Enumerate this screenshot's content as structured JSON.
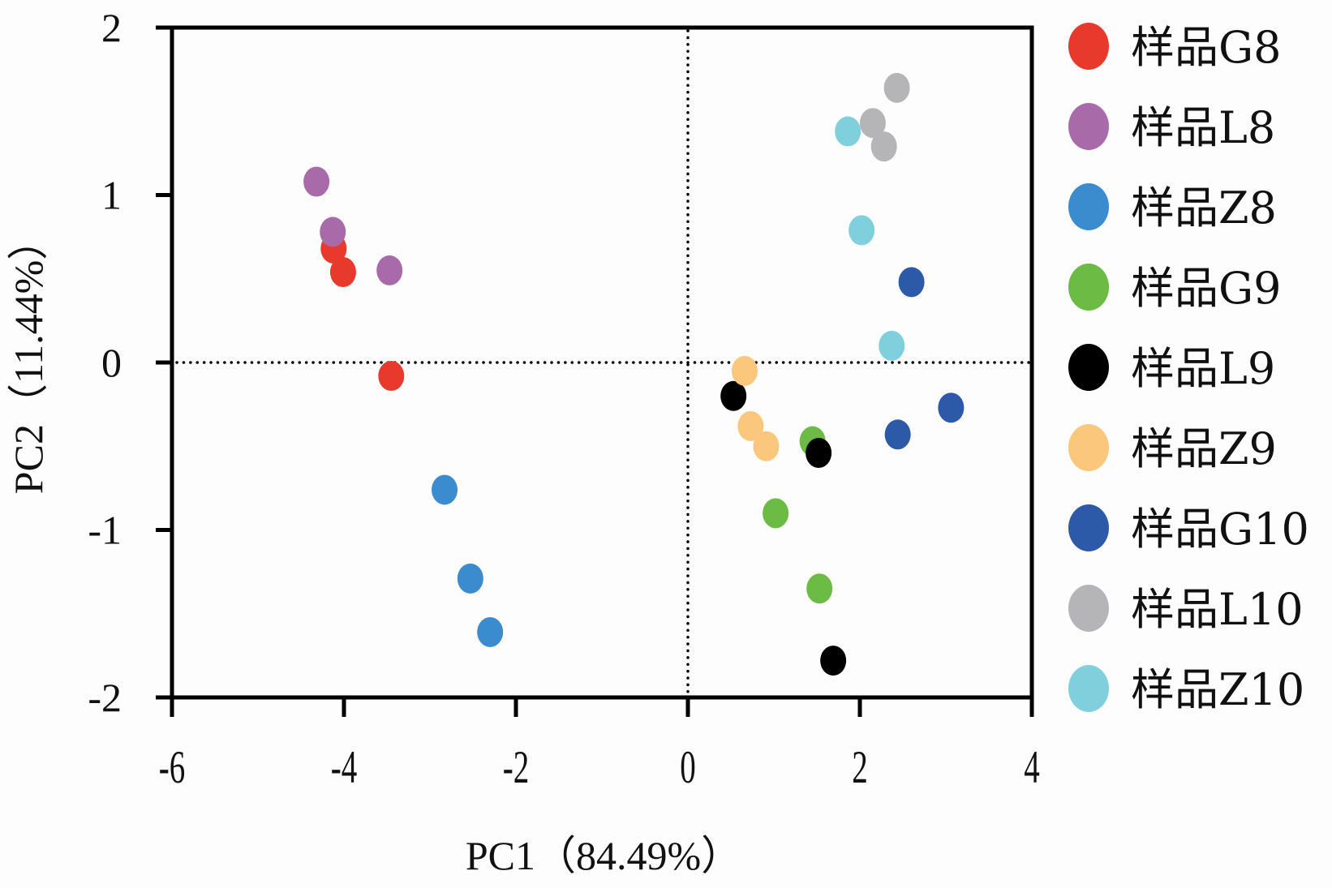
{
  "chart_data": {
    "type": "scatter",
    "title": "",
    "xlabel": "PC1（84.49%）",
    "ylabel": "PC2（11.44%）",
    "xlim": [
      -6,
      4
    ],
    "ylim": [
      -2,
      2
    ],
    "xticks": [
      -6,
      -4,
      -2,
      0,
      2,
      4
    ],
    "yticks": [
      -2,
      -1,
      0,
      1,
      2
    ],
    "xtick_labels": [
      "-6",
      "-4",
      "-2",
      "0",
      "2",
      "4"
    ],
    "ytick_labels": [
      "-2",
      "-1",
      "0",
      "1",
      "2"
    ],
    "grid": false,
    "reference_lines": {
      "x": 0,
      "y": 0,
      "style": "dotted"
    },
    "legend_position": "right",
    "series": [
      {
        "name": "样品G8",
        "color": "#e8392d",
        "points": [
          [
            -4.12,
            0.68
          ],
          [
            -4.01,
            0.54
          ],
          [
            -3.45,
            -0.08
          ]
        ]
      },
      {
        "name": "样品L8",
        "color": "#a96aaa",
        "points": [
          [
            -4.32,
            1.08
          ],
          [
            -4.13,
            0.78
          ],
          [
            -3.47,
            0.55
          ]
        ]
      },
      {
        "name": "样品Z8",
        "color": "#3b8bcf",
        "points": [
          [
            -2.83,
            -0.76
          ],
          [
            -2.53,
            -1.29
          ],
          [
            -2.3,
            -1.61
          ]
        ]
      },
      {
        "name": "样品G9",
        "color": "#6cbb45",
        "points": [
          [
            1.45,
            -0.47
          ],
          [
            1.02,
            -0.9
          ],
          [
            1.53,
            -1.35
          ]
        ]
      },
      {
        "name": "样品L9",
        "color": "#000000",
        "points": [
          [
            0.53,
            -0.2
          ],
          [
            1.52,
            -0.54
          ],
          [
            1.69,
            -1.78
          ]
        ]
      },
      {
        "name": "样品Z9",
        "color": "#fbc77c",
        "points": [
          [
            0.66,
            -0.05
          ],
          [
            0.73,
            -0.38
          ],
          [
            0.91,
            -0.5
          ]
        ]
      },
      {
        "name": "样品G10",
        "color": "#2d5aa8",
        "points": [
          [
            2.6,
            0.48
          ],
          [
            3.06,
            -0.27
          ],
          [
            2.44,
            -0.43
          ]
        ]
      },
      {
        "name": "样品L10",
        "color": "#b5b5b8",
        "points": [
          [
            2.43,
            1.64
          ],
          [
            2.15,
            1.43
          ],
          [
            2.28,
            1.29
          ]
        ]
      },
      {
        "name": "样品Z10",
        "color": "#7fd0dc",
        "points": [
          [
            1.86,
            1.38
          ],
          [
            2.02,
            0.79
          ],
          [
            2.37,
            0.1
          ]
        ]
      }
    ]
  }
}
